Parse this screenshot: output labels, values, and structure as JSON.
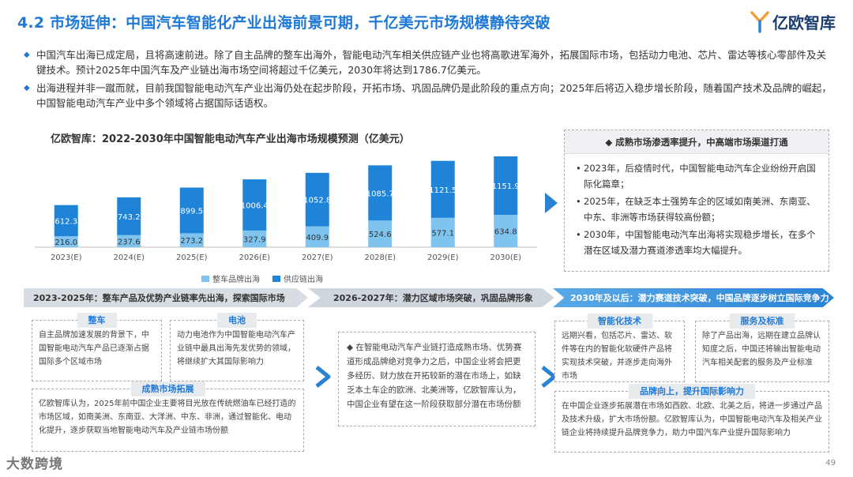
{
  "header": {
    "title": "4.2 市场延伸：中国汽车智能化产业出海前景可期，千亿美元市场规模静待突破",
    "logo_text": "亿欧智库"
  },
  "bullets": [
    "中国汽车出海已成定局，且将高速前进。除了自主品牌的整车出海外，智能电动汽车相关供应链产业也将高歌进军海外，拓展国际市场，包括动力电池、芯片、雷达等核心零部件及关键技术。预计2025年中国汽车及产业链出海市场空间将超过千亿美元，2030年将达到1786.7亿美元。",
    "出海进程并非一蹴而就，目前我国智能电动汽车产业出海仍处在起步阶段，开拓市场、巩固品牌仍是此阶段的重点方向；2025年后将迈入稳步增长阶段，随着国产技术及品牌的崛起，中国智能电动汽车产业中多个领域将占据国际话语权。"
  ],
  "chart_data": {
    "type": "bar",
    "stacked": true,
    "title": "亿欧智库：2022-2030年中国智能电动汽车产业出海市场规模预测（亿美元）",
    "categories": [
      "2023(E)",
      "2024(E)",
      "2025(E)",
      "2026(E)",
      "2027(E)",
      "2028(E)",
      "2029(E)",
      "2030(E)"
    ],
    "series": [
      {
        "name": "整车品牌出海",
        "color": "#7fc3ef",
        "values": [
          216.0,
          237.6,
          273.2,
          327.9,
          409.9,
          524.6,
          577.1,
          634.8
        ],
        "labels": [
          "216.0",
          "237.6",
          "273.2",
          "327.9",
          "409.9",
          "524.6",
          "577.1",
          "634.8"
        ]
      },
      {
        "name": "供应链出海",
        "color": "#1f84d8",
        "values": [
          612.3,
          743.2,
          899.5,
          1006.4,
          1052.8,
          1085.7,
          1121.5,
          1151.9
        ],
        "labels": [
          "612.3",
          "743.2",
          "899.5",
          "1006.4",
          "1052.8",
          "1085.7",
          "1121.5",
          "1151.9"
        ]
      }
    ],
    "legend_position": "bottom"
  },
  "side": {
    "heading": "◆ 成熟市场渗透率提升，中高端市场渠道打通",
    "items": [
      "2023年，后疫情时代，中国智能电动汽车企业纷纷开启国际化篇章；",
      "2025年，在缺乏本土强势车企的区域如南美洲、东南亚、中东、非洲等市场获得较高份额；",
      "2030年，中国智能电动汽车出海将实现稳步增长，在多个潜在区域及潜力赛道渗透率均大幅提升。"
    ]
  },
  "phases": [
    "2023-2025年：整车产品及优势产业链率先出海，探索国际市场",
    "2026-2027年：潜力区域市场突破，巩固品牌形象",
    "2030年及以后：潜力赛道技术突破，中国品牌逐步树立国际竞争力"
  ],
  "cards": {
    "car": {
      "tag": "整车",
      "text": "自主品牌加速发展的背景下，中国智能电动汽车产品已逐渐占据国际多个区域市场"
    },
    "battery": {
      "tag": "电池",
      "text": "动力电池作为中国智能电动汽车产业链中最具出海先发优势的领域，将继续扩大其国际影响力"
    },
    "market": {
      "tag": "成熟市场拓展",
      "text": "亿欧智库认为，2025年前中国企业主要将目光放在传统燃油车已经打造的市场区域，如南美洲、东南亚、大洋洲、中东、非洲，通过智能化、电动化提升，逐步获取当地智能电动汽车及产业链市场份额"
    },
    "middle": {
      "text": "◆ 在智能电动汽车产业链打造成熟市场、优势赛道形成品牌绝对竞争力之后，中国企业将会把更多经历、财力放在开拓较新的潜在市场上，如缺乏本土车企的欧洲、北美洲等，亿欧智库认为，中国企业有望在这一阶段获取部分潜在市场份额"
    },
    "intelligent": {
      "tag": "智能化技术",
      "text": "远期兴看，包括芯片、雷达、软件等在内的智能化软硬件产品将实现技术突破，并逐步走向海外市场"
    },
    "service": {
      "tag": "服务及标准",
      "text": "除了产品出海，远期在建立品牌认知度之后，中国还将输出智能电动汽车相关配套的服务及产业标准"
    },
    "brand": {
      "tag": "品牌向上，提升国际影响力",
      "text": "在中国企业逐步拓展潜在市场如西欧、北欧、北美之后，将进一步通过产品及技术升级，扩大市场份额。亿欧智库认为，中国智能电动汽车及相关产业链企业将持续提升品牌竞争力，助力中国汽车产业提升国际影响力"
    }
  },
  "footer": {
    "page_number": "49",
    "watermark": "大数跨境"
  }
}
